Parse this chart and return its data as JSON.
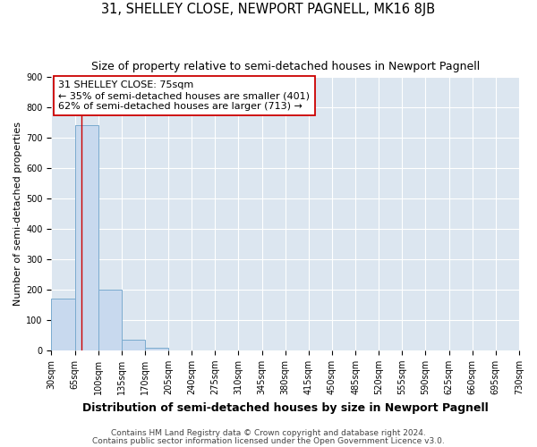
{
  "title": "31, SHELLEY CLOSE, NEWPORT PAGNELL, MK16 8JB",
  "subtitle": "Size of property relative to semi-detached houses in Newport Pagnell",
  "xlabel": "Distribution of semi-detached houses by size in Newport Pagnell",
  "ylabel": "Number of semi-detached properties",
  "footnote1": "Contains HM Land Registry data © Crown copyright and database right 2024.",
  "footnote2": "Contains public sector information licensed under the Open Government Licence v3.0.",
  "bin_edges": [
    30,
    65,
    100,
    135,
    170,
    205,
    240,
    275,
    310,
    345,
    380,
    415,
    450,
    485,
    520,
    555,
    590,
    625,
    660,
    695,
    730
  ],
  "bar_values": [
    170,
    740,
    200,
    35,
    10,
    0,
    0,
    0,
    0,
    0,
    0,
    0,
    0,
    0,
    0,
    0,
    0,
    0,
    0,
    0
  ],
  "bar_color": "#c8d9ee",
  "bar_edgecolor": "#7aabcf",
  "property_line_x": 75,
  "property_line_color": "#cc0000",
  "annotation_text": "31 SHELLEY CLOSE: 75sqm\n← 35% of semi-detached houses are smaller (401)\n62% of semi-detached houses are larger (713) →",
  "annotation_box_color": "#ffffff",
  "annotation_box_edgecolor": "#cc0000",
  "ylim": [
    0,
    900
  ],
  "yticks": [
    0,
    100,
    200,
    300,
    400,
    500,
    600,
    700,
    800,
    900
  ],
  "background_color": "#dce6f0",
  "grid_color": "#ffffff",
  "title_fontsize": 10.5,
  "subtitle_fontsize": 9,
  "tick_label_fontsize": 7,
  "ylabel_fontsize": 8,
  "xlabel_fontsize": 9,
  "annotation_fontsize": 8,
  "footnote_fontsize": 6.5
}
